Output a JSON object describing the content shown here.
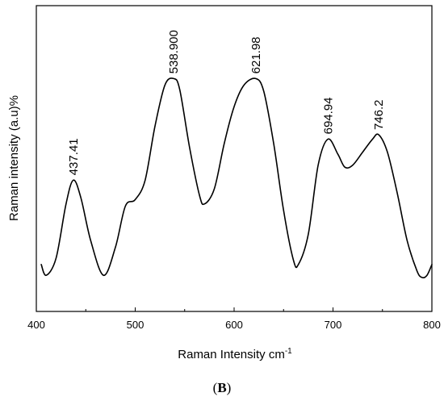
{
  "chart_data": {
    "type": "line",
    "xlabel": "Raman Intensity cm",
    "xlabel_superscript": "-1",
    "ylabel": "Raman intensity (a.u)%",
    "xlim": [
      400,
      800
    ],
    "x_ticks": [
      400,
      500,
      600,
      700,
      800
    ],
    "y_ticks_visible": false,
    "grid": false,
    "series": [
      {
        "x": [
          405,
          410,
          420,
          430,
          437.4,
          445,
          455,
          468,
          480,
          490,
          500,
          510,
          520,
          530,
          538.9,
          545,
          555,
          565,
          570,
          580,
          590,
          600,
          610,
          621.98,
          630,
          640,
          650,
          660,
          665,
          675,
          685,
          694.94,
          705,
          712,
          720,
          730,
          740,
          746.2,
          755,
          765,
          775,
          785,
          790,
          795,
          800
        ],
        "y": [
          12,
          7,
          15,
          40,
          51,
          43,
          23,
          7,
          20,
          39,
          42,
          51,
          76,
          95,
          98,
          93,
          66,
          44,
          40,
          47,
          68,
          85,
          95,
          98,
          92,
          68,
          37,
          14,
          12,
          26,
          58,
          70,
          63,
          57,
          58,
          64,
          70,
          72,
          64,
          45,
          23,
          9,
          6,
          7,
          12
        ]
      }
    ],
    "peak_labels": [
      {
        "x": 437.41,
        "y": 51,
        "text": "437.41"
      },
      {
        "x": 538.9,
        "y": 98,
        "text": "538.900"
      },
      {
        "x": 621.98,
        "y": 98,
        "text": "621.98"
      },
      {
        "x": 694.94,
        "y": 70,
        "text": "694.94"
      },
      {
        "x": 746.2,
        "y": 72,
        "text": "746.2"
      }
    ]
  },
  "panel_label": "B"
}
